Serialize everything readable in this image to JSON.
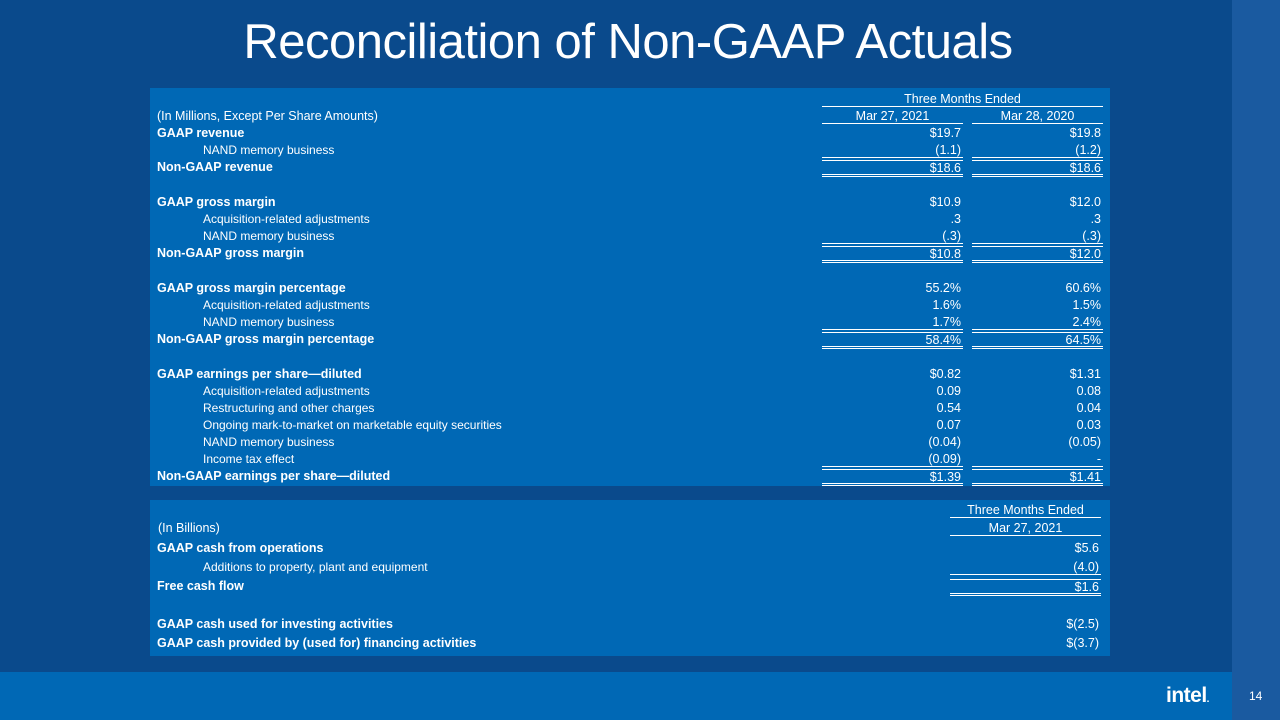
{
  "title": "Reconciliation of Non-GAAP Actuals",
  "table1": {
    "period_header": "Three Months Ended",
    "units_label": "(In Millions, Except Per Share Amounts)",
    "col1": "Mar 27, 2021",
    "col2": "Mar 28, 2020",
    "rows": [
      {
        "label": "GAAP revenue",
        "v1": "$19.7",
        "v2": "$19.8"
      },
      {
        "label": "NAND memory business",
        "v1": "(1.1)",
        "v2": "(1.2)"
      },
      {
        "label": "Non-GAAP revenue",
        "v1": "$18.6",
        "v2": "$18.6"
      },
      {
        "label": "GAAP gross margin",
        "v1": "$10.9",
        "v2": "$12.0"
      },
      {
        "label": "Acquisition-related adjustments",
        "v1": ".3",
        "v2": ".3"
      },
      {
        "label": "NAND memory business",
        "v1": "(.3)",
        "v2": "(.3)"
      },
      {
        "label": "Non-GAAP gross margin",
        "v1": "$10.8",
        "v2": "$12.0"
      },
      {
        "label": "GAAP gross margin percentage",
        "v1": "55.2%",
        "v2": "60.6%"
      },
      {
        "label": "Acquisition-related adjustments",
        "v1": "1.6%",
        "v2": "1.5%"
      },
      {
        "label": "NAND memory business",
        "v1": "1.7%",
        "v2": "2.4%"
      },
      {
        "label": "Non-GAAP gross margin percentage",
        "v1": "58.4%",
        "v2": "64.5%"
      },
      {
        "label": "GAAP earnings per share—diluted",
        "v1": "$0.82",
        "v2": "$1.31"
      },
      {
        "label": "Acquisition-related adjustments",
        "v1": "0.09",
        "v2": "0.08"
      },
      {
        "label": "Restructuring and other charges",
        "v1": "0.54",
        "v2": "0.04"
      },
      {
        "label": "Ongoing mark-to-market on marketable equity securities",
        "v1": "0.07",
        "v2": "0.03"
      },
      {
        "label": "NAND memory business",
        "v1": "(0.04)",
        "v2": "(0.05)"
      },
      {
        "label": "Income tax effect",
        "v1": "(0.09)",
        "v2": "-"
      },
      {
        "label": "Non-GAAP earnings per share—diluted",
        "v1": "$1.39",
        "v2": "$1.41"
      }
    ]
  },
  "table2": {
    "period_header": "Three Months Ended",
    "units_label": "(In Billions)",
    "col1": "Mar 27, 2021",
    "rows": [
      {
        "label": "GAAP cash from operations",
        "v1": "$5.6"
      },
      {
        "label": "Additions to property, plant and equipment",
        "v1": "(4.0)"
      },
      {
        "label": "Free cash flow",
        "v1": "$1.6"
      },
      {
        "label": "GAAP cash used for investing activities",
        "v1": "$(2.5)"
      },
      {
        "label": "GAAP cash provided by (used for) financing activities",
        "v1": "$(3.7)"
      }
    ]
  },
  "footer": {
    "logo_text": "intel",
    "page_number": "14"
  }
}
